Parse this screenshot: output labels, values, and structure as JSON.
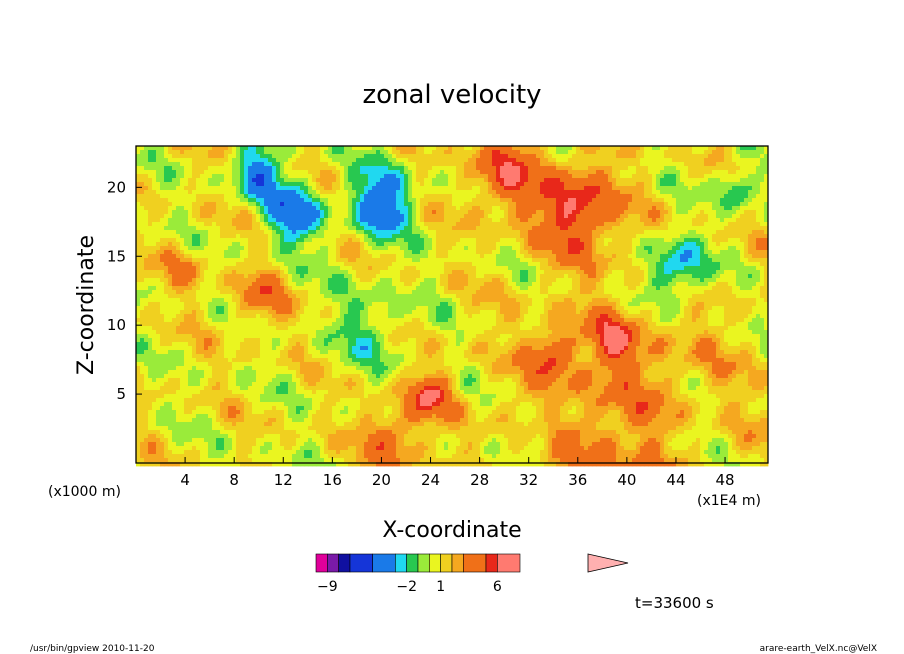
{
  "chart_data": {
    "type": "heatmap",
    "title": "zonal velocity",
    "xlabel": "X-coordinate",
    "ylabel": "Z-coordinate",
    "x_unit_left": "(x1000 m)",
    "x_unit_right": "(x1E4 m)",
    "xlim": [
      0,
      51.5
    ],
    "ylim": [
      0,
      23
    ],
    "x_ticks": [
      4,
      8,
      12,
      16,
      20,
      24,
      28,
      32,
      36,
      40,
      44,
      48
    ],
    "x_tick_labels": [
      "4",
      "8",
      "12",
      "16",
      "20",
      "24",
      "28",
      "32",
      "36",
      "40",
      "44",
      "48"
    ],
    "y_ticks": [
      5,
      10,
      15,
      20
    ],
    "y_tick_labels": [
      "5",
      "10",
      "15",
      "20"
    ],
    "colorbar": {
      "levels": [
        -10,
        -9,
        -8,
        -7,
        -5,
        -3,
        -2,
        -1,
        0,
        1,
        2,
        3,
        5,
        6,
        8,
        14
      ],
      "colors": [
        "#e0009a",
        "#7a1aa8",
        "#1010a0",
        "#1535d8",
        "#1a7ae8",
        "#20d8f0",
        "#28c850",
        "#9aeb3a",
        "#eaf520",
        "#f0d020",
        "#f5a820",
        "#f07018",
        "#e8281a",
        "#ff7a70"
      ],
      "extension_color": "#ffb0b0",
      "tick_values": [
        -9,
        -2,
        1,
        6
      ],
      "tick_labels": [
        "−9",
        "−2",
        "1",
        "6"
      ]
    },
    "field_features": [
      {
        "x": 40,
        "z": 3.0,
        "value": 2.5,
        "radius": 9.0
      },
      {
        "x": 19,
        "z": 10.0,
        "value": -2.0,
        "radius": 3.2
      },
      {
        "x": 36,
        "z": 18.5,
        "value": 5.2,
        "radius": 3.3
      },
      {
        "x": 30,
        "z": 21.0,
        "value": 4.0,
        "radius": 3.0
      },
      {
        "x": 20,
        "z": 19.0,
        "value": -5.5,
        "radius": 2.4
      },
      {
        "x": 13,
        "z": 18.0,
        "value": -5.0,
        "radius": 2.2
      },
      {
        "x": 10,
        "z": 21.0,
        "value": -4.5,
        "radius": 2.0
      },
      {
        "x": 44,
        "z": 14.0,
        "value": -4.5,
        "radius": 2.4
      },
      {
        "x": 24,
        "z": 5.0,
        "value": 4.5,
        "radius": 1.6
      },
      {
        "x": 21,
        "z": 2.0,
        "value": 3.5,
        "radius": 2.4
      },
      {
        "x": 45,
        "z": 2.0,
        "value": -1.5,
        "radius": 3.0
      },
      {
        "x": 34,
        "z": 8.0,
        "value": 4.0,
        "radius": 1.6
      },
      {
        "x": 39,
        "z": 9.0,
        "value": 3.5,
        "radius": 1.8
      },
      {
        "x": 33,
        "z": 2.5,
        "value": -2.0,
        "radius": 1.5
      },
      {
        "x": 10,
        "z": 12.0,
        "value": 3.0,
        "radius": 2.0
      },
      {
        "x": 4,
        "z": 14.0,
        "value": 2.0,
        "radius": 1.8
      },
      {
        "x": 49,
        "z": 20.0,
        "value": -3.5,
        "radius": 1.5
      }
    ],
    "time_label": "t=33600 s"
  },
  "footer": {
    "left": "/usr/bin/gpview   2010-11-20",
    "right": "arare-earth_VelX.nc@VelX"
  }
}
